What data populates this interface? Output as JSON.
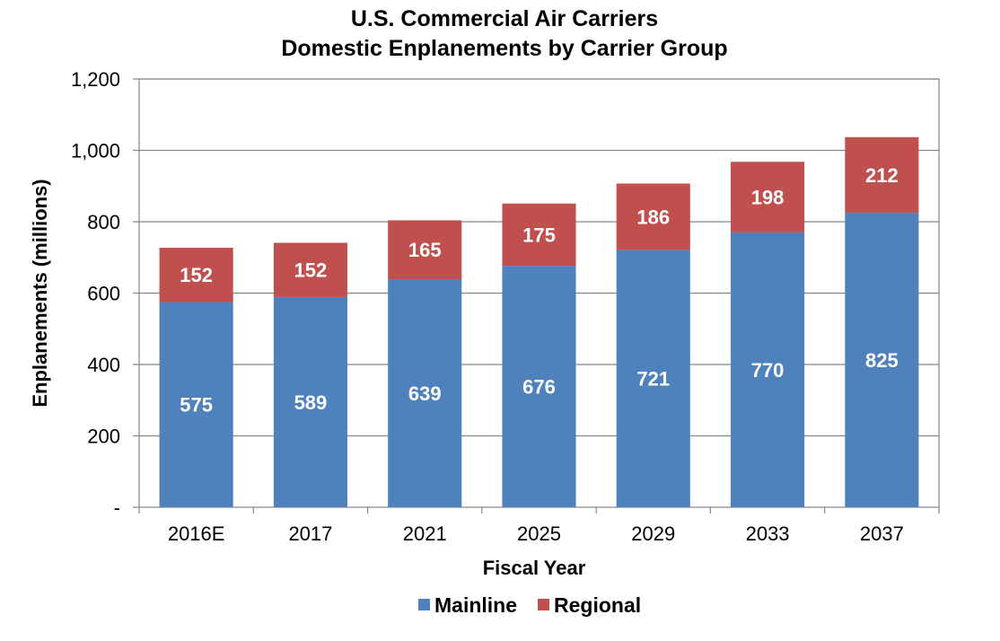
{
  "chart_data": {
    "type": "bar",
    "stacked": true,
    "title_lines": [
      "U.S. Commercial Air Carriers",
      "Domestic Enplanements by Carrier Group"
    ],
    "xlabel": "Fiscal Year",
    "ylabel": "Enplanements (millions)",
    "categories": [
      "2016E",
      "2017",
      "2021",
      "2025",
      "2029",
      "2033",
      "2037"
    ],
    "series": [
      {
        "name": "Mainline",
        "color": "#4f81bd",
        "values": [
          575,
          589,
          639,
          676,
          721,
          770,
          825
        ]
      },
      {
        "name": "Regional",
        "color": "#c0504d",
        "values": [
          152,
          152,
          165,
          175,
          186,
          198,
          212
        ]
      }
    ],
    "ylim": [
      0,
      1200
    ],
    "yticks": [
      0,
      200,
      400,
      600,
      800,
      1000,
      1200
    ],
    "ytick_labels": [
      "-",
      "200",
      "400",
      "600",
      "800",
      "1,000",
      "1,200"
    ],
    "grid": true,
    "legend_position": "bottom"
  }
}
